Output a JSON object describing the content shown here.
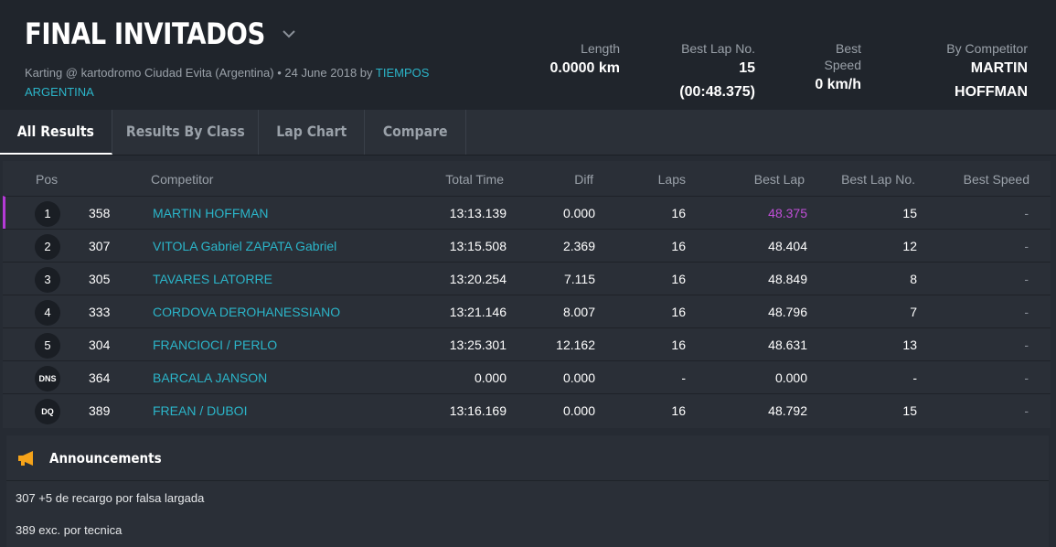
{
  "header": {
    "title": "FINAL INVITADOS",
    "subtitle_prefix": "Karting @ kartodromo Ciudad Evita (Argentina) • 24 June 2018 by",
    "subtitle_link": "TIEMPOS ARGENTINA",
    "stats": [
      {
        "label": "Length",
        "value": "0.0000 km"
      },
      {
        "label": "Best Lap No.",
        "value": "15 (00:48.375)"
      },
      {
        "label": "Best Speed",
        "value": "0 km/h"
      },
      {
        "label": "By Competitor",
        "value": "MARTIN HOFFMAN"
      }
    ]
  },
  "tabs": [
    {
      "label": "All Results",
      "active": true
    },
    {
      "label": "Results By Class",
      "active": false
    },
    {
      "label": "Lap Chart",
      "active": false
    },
    {
      "label": "Compare",
      "active": false
    }
  ],
  "table": {
    "headers": {
      "pos": "Pos",
      "competitor": "Competitor",
      "total_time": "Total Time",
      "diff": "Diff",
      "laps": "Laps",
      "best_lap": "Best Lap",
      "best_lap_no": "Best Lap No.",
      "best_speed": "Best Speed"
    },
    "rows": [
      {
        "pos": "1",
        "number": "358",
        "competitor": "MARTIN HOFFMAN",
        "total_time": "13:13.139",
        "diff": "0.000",
        "laps": "16",
        "best_lap": "48.375",
        "best_lap_no": "15",
        "best_speed": "-"
      },
      {
        "pos": "2",
        "number": "307",
        "competitor": "VITOLA Gabriel ZAPATA Gabriel",
        "total_time": "13:15.508",
        "diff": "2.369",
        "laps": "16",
        "best_lap": "48.404",
        "best_lap_no": "12",
        "best_speed": "-"
      },
      {
        "pos": "3",
        "number": "305",
        "competitor": "TAVARES LATORRE",
        "total_time": "13:20.254",
        "diff": "7.115",
        "laps": "16",
        "best_lap": "48.849",
        "best_lap_no": "8",
        "best_speed": "-"
      },
      {
        "pos": "4",
        "number": "333",
        "competitor": "CORDOVA DEROHANESSIANO",
        "total_time": "13:21.146",
        "diff": "8.007",
        "laps": "16",
        "best_lap": "48.796",
        "best_lap_no": "7",
        "best_speed": "-"
      },
      {
        "pos": "5",
        "number": "304",
        "competitor": "FRANCIOCI / PERLO",
        "total_time": "13:25.301",
        "diff": "12.162",
        "laps": "16",
        "best_lap": "48.631",
        "best_lap_no": "13",
        "best_speed": "-"
      },
      {
        "pos": "DNS",
        "number": "364",
        "competitor": "BARCALA JANSON",
        "total_time": "0.000",
        "diff": "0.000",
        "laps": "-",
        "best_lap": "0.000",
        "best_lap_no": "-",
        "best_speed": "-"
      },
      {
        "pos": "DQ",
        "number": "389",
        "competitor": "FREAN / DUBOI",
        "total_time": "13:16.169",
        "diff": "0.000",
        "laps": "16",
        "best_lap": "48.792",
        "best_lap_no": "15",
        "best_speed": "-"
      }
    ]
  },
  "announcements": {
    "title": "Announcements",
    "icon": "megaphone-icon",
    "items": [
      "307 +5 de recargo por falsa largada",
      "389 exc. por tecnica"
    ]
  },
  "colors": {
    "accent": "#2bb5c9",
    "best_lap": "#c14fd8",
    "megaphone": "#f5a31a"
  }
}
